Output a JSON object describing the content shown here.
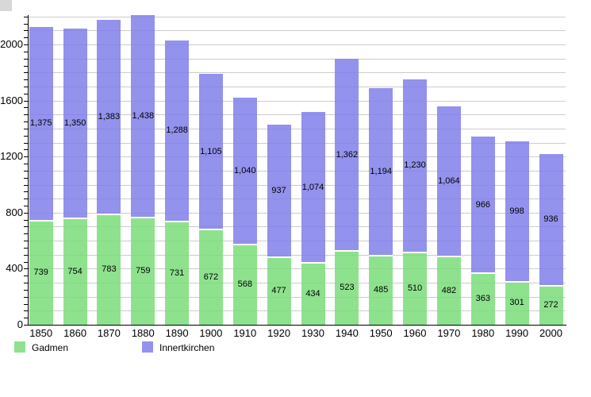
{
  "chart_data": {
    "type": "bar",
    "stacked": true,
    "title": "",
    "xlabel": "",
    "ylabel": "",
    "categories": [
      "1850",
      "1860",
      "1870",
      "1880",
      "1890",
      "1900",
      "1910",
      "1920",
      "1930",
      "1940",
      "1950",
      "1960",
      "1970",
      "1980",
      "1990",
      "2000"
    ],
    "series": [
      {
        "name": "Gadmen",
        "color": "#8ee28e",
        "values": [
          739,
          754,
          783,
          759,
          731,
          672,
          568,
          477,
          434,
          523,
          485,
          510,
          482,
          363,
          301,
          272
        ]
      },
      {
        "name": "Innertkirchen",
        "color": "#9492ee",
        "values": [
          1375,
          1350,
          1383,
          1438,
          1288,
          1105,
          1040,
          937,
          1074,
          1362,
          1194,
          1230,
          1064,
          966,
          998,
          936
        ]
      }
    ],
    "ylim": [
      0,
      2200
    ],
    "yticks": [
      0,
      400,
      800,
      1200,
      1600,
      2000
    ],
    "grid": {
      "on": true,
      "minor_step": 100,
      "tick_step": 50,
      "color": "#cccccc"
    },
    "legend_position": "bottom",
    "value_label_format": "thousands-comma"
  }
}
